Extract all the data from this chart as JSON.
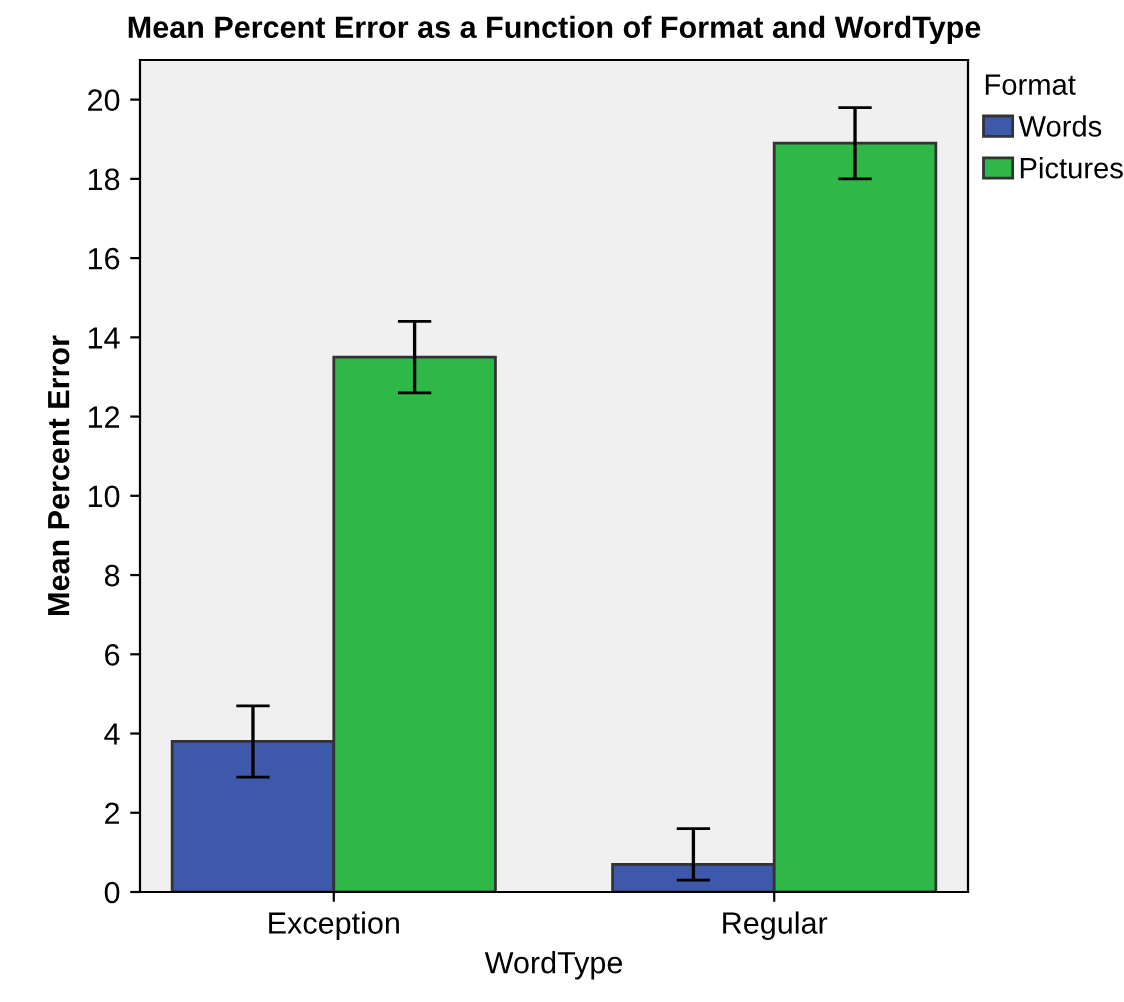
{
  "chart_data": {
    "type": "bar",
    "title": "Mean Percent Error as a Function of Format and WordType",
    "xlabel": "WordType",
    "ylabel": "Mean Percent Error",
    "legend_title": "Format",
    "categories": [
      "Exception",
      "Regular"
    ],
    "series": [
      {
        "name": "Words",
        "color": "#3e58ac",
        "values": [
          3.8,
          0.7
        ],
        "errors": [
          [
            2.9,
            4.7
          ],
          [
            0.3,
            1.6
          ]
        ]
      },
      {
        "name": "Pictures",
        "color": "#2eb848",
        "values": [
          13.5,
          18.9
        ],
        "errors": [
          [
            12.6,
            14.4
          ],
          [
            18.0,
            19.8
          ]
        ]
      }
    ],
    "ylim": [
      0,
      21
    ],
    "yticks": [
      0,
      2,
      4,
      6,
      8,
      10,
      12,
      14,
      16,
      18,
      20
    ],
    "grid": false,
    "legend": "top right"
  }
}
